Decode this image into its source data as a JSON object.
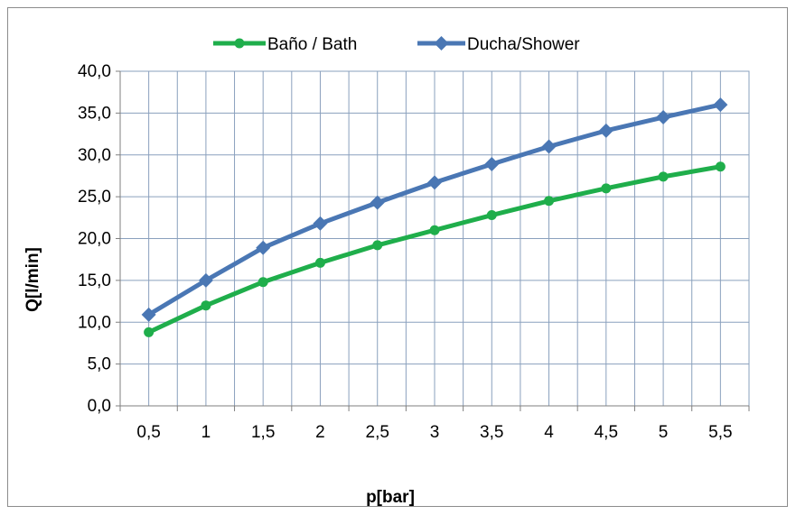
{
  "chart_data": {
    "type": "line",
    "x": [
      "0,5",
      "1",
      "1,5",
      "2",
      "2,5",
      "3",
      "3,5",
      "4",
      "4,5",
      "5",
      "5,5"
    ],
    "series": [
      {
        "name": "Baño / Bath",
        "values": [
          8.8,
          12.0,
          14.8,
          17.1,
          19.2,
          21.0,
          22.8,
          24.5,
          26.0,
          27.4,
          28.6
        ],
        "color": "#1fae4b",
        "marker": "circle"
      },
      {
        "name": "Ducha/Shower",
        "values": [
          10.9,
          15.0,
          18.9,
          21.8,
          24.3,
          26.7,
          28.9,
          31.0,
          32.9,
          34.5,
          36.0
        ],
        "color": "#4a77b4",
        "marker": "diamond"
      }
    ],
    "xlabel": "p[bar]",
    "ylabel": "Q[l/min]",
    "ylim": [
      0,
      40
    ],
    "yticks": [
      "0,0",
      "5,0",
      "10,0",
      "15,0",
      "20,0",
      "25,0",
      "30,0",
      "35,0",
      "40,0"
    ],
    "grid": true,
    "legend_position": "top"
  }
}
